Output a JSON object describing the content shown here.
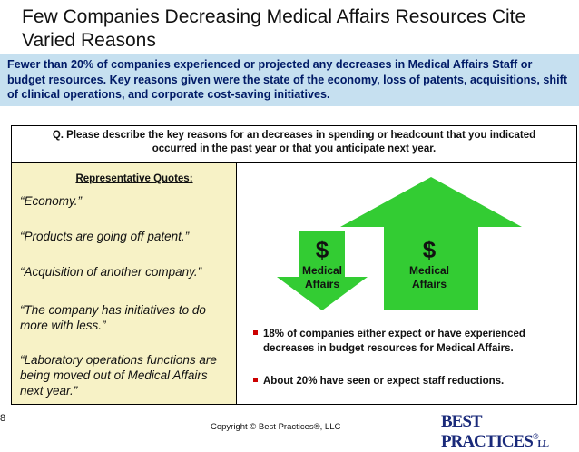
{
  "slide": {
    "title": "Few Companies Decreasing Medical Affairs Resources Cite Varied Reasons",
    "summary": "Fewer than 20% of companies experienced or projected any decreases in Medical Affairs Staff or budget resources. Key reasons given were the state of the economy, loss of patents, acquisitions, shift of clinical operations, and corporate cost-saving initiatives.",
    "question": "Q. Please describe the key reasons for an decreases in spending or headcount that you indicated occurred in the past year or that you anticipate next year.",
    "quotes_title": "Representative Quotes:",
    "quotes": [
      "“Economy.”",
      "“Products are going off patent.”",
      "“Acquisition of another company.”",
      "“The company has initiatives to do more with less.”",
      "“Laboratory operations functions are being moved out of Medical Affairs next year.”"
    ],
    "arrows": {
      "down": {
        "symbol": "$",
        "label_line1": "Medical",
        "label_line2": "Affairs",
        "color": "#33cc33",
        "direction": "down"
      },
      "up": {
        "symbol": "$",
        "label_line1": "Medical",
        "label_line2": "Affairs",
        "color": "#33cc33",
        "direction": "up"
      }
    },
    "bullets": [
      "18% of companies either expect or have experienced decreases in budget resources for Medical Affairs.",
      "About 20% have seen or expect staff reductions."
    ],
    "slide_number": "8",
    "copyright": "Copyright © Best Practices®, LLC",
    "logo": {
      "text": "BEST PRACTICES",
      "tm": "®",
      "suffix": "LL"
    }
  },
  "colors": {
    "banner_bg": "#c6e0f0",
    "banner_text": "#001a66",
    "quotes_bg": "#f7f2c6",
    "arrow_green": "#33cc33",
    "bullet_red": "#cc0000",
    "logo_blue": "#1a2a7a"
  }
}
